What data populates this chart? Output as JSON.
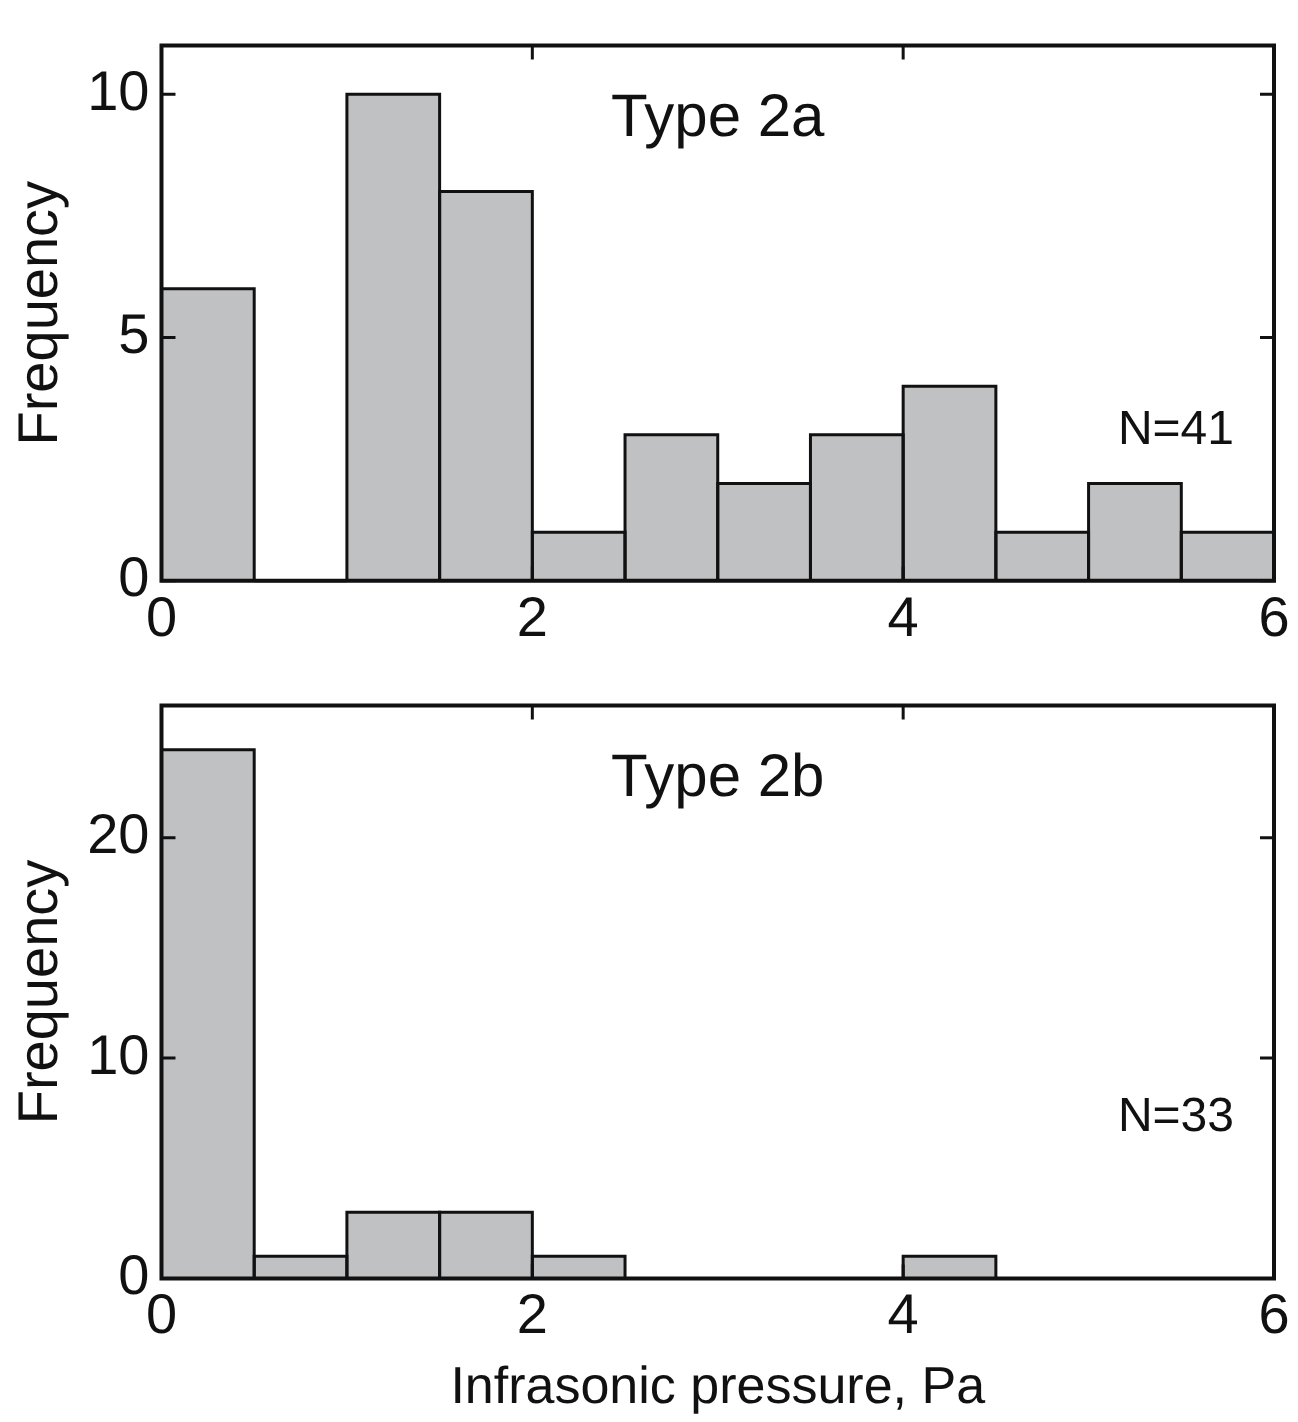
{
  "chart_data": [
    {
      "type": "histogram",
      "bins": [
        0,
        0.5,
        1,
        1.5,
        2,
        2.5,
        3,
        3.5,
        4,
        4.5,
        5,
        5.5,
        6
      ],
      "values": [
        6,
        0,
        10,
        8,
        1,
        3,
        2,
        3,
        4,
        1,
        2,
        1
      ],
      "color": "#c0c1c3",
      "ylabel": "Frequency",
      "xlim": [
        0,
        6
      ],
      "xticks": [
        0,
        2,
        4,
        6
      ],
      "ylim": [
        0,
        11
      ],
      "yticks": [
        0,
        5,
        10
      ],
      "grid": false,
      "legend": false,
      "annotations": [
        "Type 2a",
        "N=41"
      ]
    },
    {
      "type": "histogram",
      "bins": [
        0,
        0.5,
        1,
        1.5,
        2,
        2.5,
        3,
        3.5,
        4,
        4.5,
        5,
        5.5,
        6
      ],
      "values": [
        24,
        1,
        3,
        3,
        1,
        0,
        0,
        0,
        1,
        0,
        0,
        0
      ],
      "color": "#c0c1c3",
      "xlabel": "Infrasonic pressure, Pa",
      "ylabel": "Frequency",
      "xlim": [
        0,
        6
      ],
      "xticks": [
        0,
        2,
        4,
        6
      ],
      "ylim": [
        0,
        26
      ],
      "yticks": [
        0,
        10,
        20
      ],
      "grid": false,
      "legend": false,
      "annotations": [
        "Type 2b",
        "N=33"
      ]
    }
  ]
}
